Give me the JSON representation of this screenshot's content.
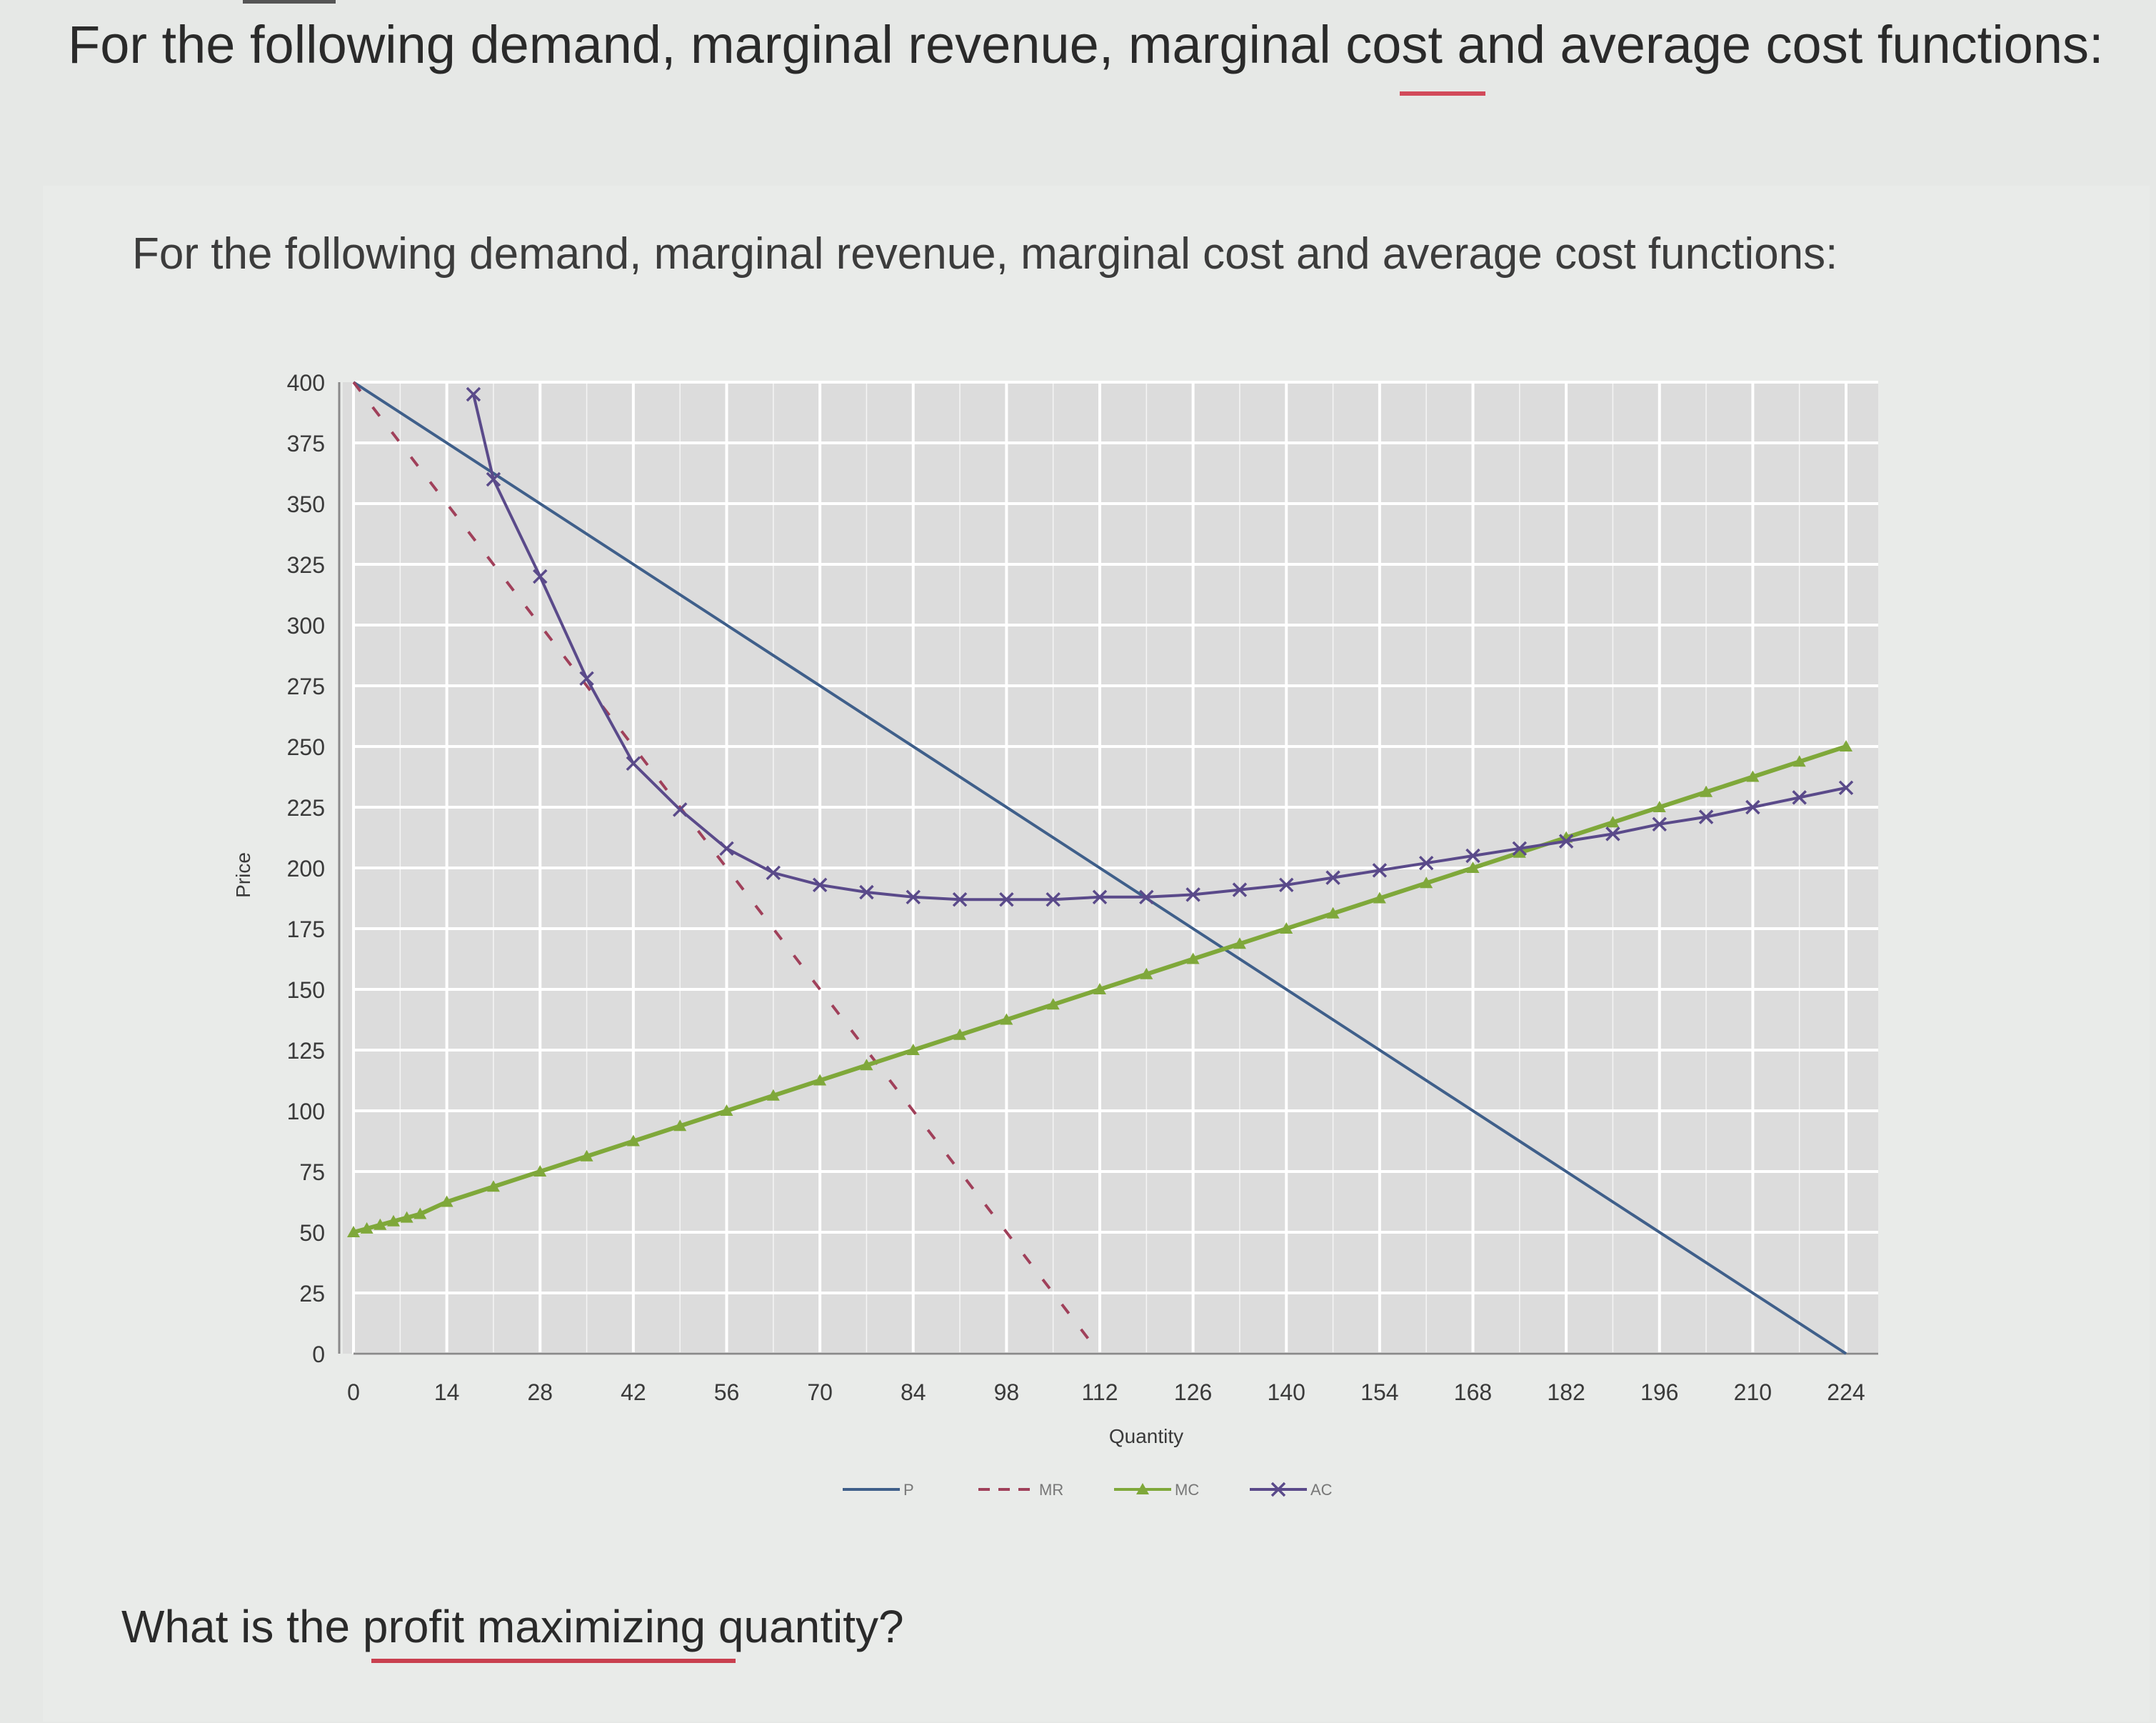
{
  "page": {
    "heading": "For the following demand, marginal revenue, marginal cost and average cost functions:",
    "chart_heading": "For the following demand, marginal revenue, marginal cost and average cost functions:",
    "question": "What is the profit maximizing quantity?"
  },
  "colors": {
    "P": "#3f5f8a",
    "MR": "#a0405a",
    "MC": "#7fa83a",
    "AC": "#5a4a8a",
    "grid": "#ffffff",
    "plot_bg": "#dcdcdc"
  },
  "chart_data": {
    "type": "line",
    "xlabel": "Quantity",
    "ylabel": "Price",
    "xlim": [
      0,
      224
    ],
    "ylim": [
      0,
      400
    ],
    "x_ticks": [
      0,
      14,
      28,
      42,
      56,
      70,
      84,
      98,
      112,
      126,
      140,
      154,
      168,
      182,
      196,
      210,
      224
    ],
    "y_ticks": [
      0,
      25,
      50,
      75,
      100,
      125,
      150,
      175,
      200,
      225,
      250,
      275,
      300,
      325,
      350,
      375,
      400
    ],
    "grid": true,
    "legend_position": "bottom",
    "series": [
      {
        "name": "P",
        "style": "solid",
        "marker": "none",
        "x": [
          0,
          224
        ],
        "y": [
          400,
          0
        ]
      },
      {
        "name": "MR",
        "style": "dashed",
        "marker": "none",
        "x": [
          0,
          112
        ],
        "y": [
          400,
          0
        ]
      },
      {
        "name": "MC",
        "style": "solid",
        "marker": "triangle",
        "x": [
          0,
          2,
          4,
          6,
          8,
          10,
          14,
          21,
          28,
          35,
          42,
          49,
          56,
          63,
          70,
          77,
          84,
          91,
          98,
          105,
          112,
          119,
          126,
          133,
          140,
          147,
          154,
          161,
          168,
          175,
          182,
          189,
          196,
          203,
          210,
          217,
          224
        ],
        "y": [
          50,
          51.5,
          53,
          54.5,
          56,
          57.5,
          62.5,
          68.75,
          75,
          81.25,
          87.5,
          93.75,
          100,
          106.25,
          112.5,
          118.75,
          125,
          131.25,
          137.5,
          143.75,
          150,
          156.25,
          162.5,
          168.75,
          175,
          181.25,
          187.5,
          193.75,
          200,
          206.25,
          212.5,
          218.75,
          225,
          231.25,
          237.5,
          243.75,
          250
        ]
      },
      {
        "name": "AC",
        "style": "solid",
        "marker": "x",
        "x": [
          18,
          21,
          28,
          35,
          42,
          49,
          56,
          63,
          70,
          77,
          84,
          91,
          98,
          105,
          112,
          119,
          126,
          133,
          140,
          147,
          154,
          161,
          168,
          175,
          182,
          189,
          196,
          203,
          210,
          217,
          224
        ],
        "y": [
          395,
          360,
          320,
          278,
          243,
          224,
          208,
          198,
          193,
          190,
          188,
          187,
          187,
          187,
          188,
          188,
          189,
          191,
          193,
          196,
          199,
          202,
          205,
          208,
          211,
          214,
          218,
          221,
          225,
          229,
          233
        ]
      }
    ]
  }
}
